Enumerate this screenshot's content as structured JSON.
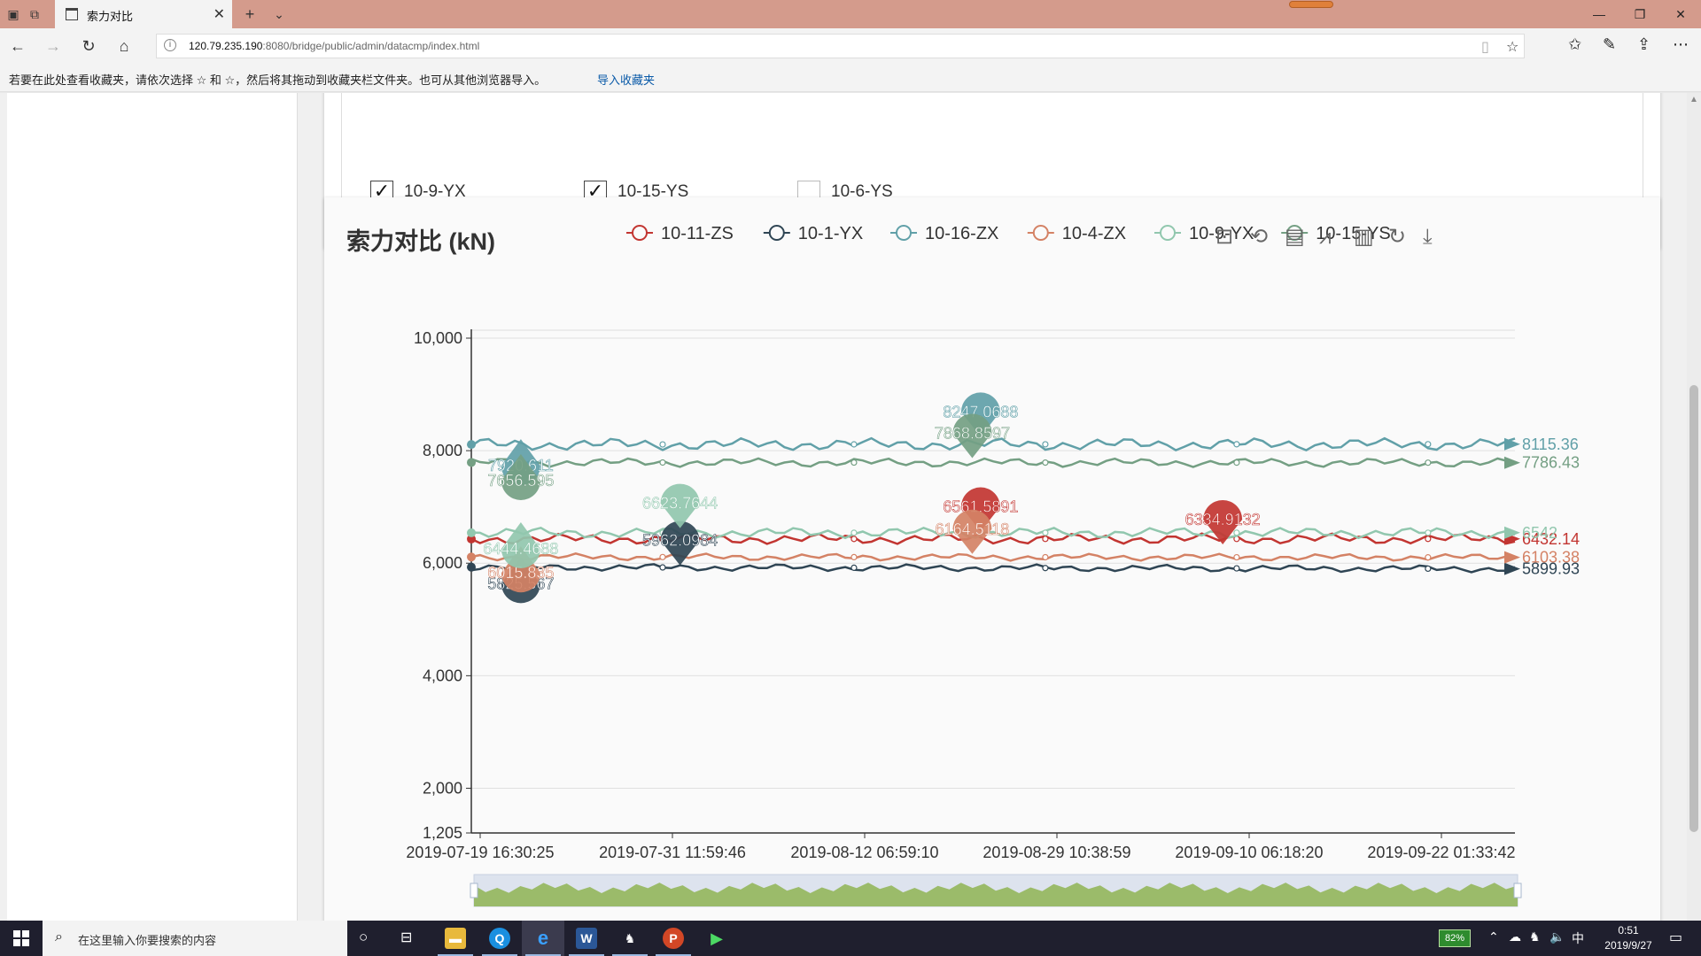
{
  "browser": {
    "tab_title": "索力对比",
    "url_host": "120.79.235.190",
    "url_rest": ":8080/bridge/public/admin/datacmp/index.html",
    "favbar_message": "若要在此处查看收藏夹，请依次选择 ☆ 和 ☆，然后将其拖动到收藏夹栏文件夹。也可从其他浏览器导入。",
    "favbar_link": "导入收藏夹"
  },
  "checkboxes": [
    {
      "label": "10-9-YX",
      "checked": true
    },
    {
      "label": "10-15-YS",
      "checked": true
    },
    {
      "label": "10-6-YS",
      "checked": false
    }
  ],
  "colors": {
    "s_zs": "#c23531",
    "s_yx1": "#2f4554",
    "s_zx16": "#61a0a8",
    "s_zx4": "#d48265",
    "s_yx9": "#91c7ae",
    "s_ys15": "#749f83",
    "zoom_fill": "#9bbb6a"
  },
  "toolbox": [
    "zoom-icon",
    "zoom-reset-icon",
    "data-view-icon",
    "line-chart-icon",
    "bar-chart-icon",
    "restore-icon",
    "download-icon"
  ],
  "chart_data": {
    "type": "line",
    "title": "索力对比 (kN)",
    "ylim": [
      1205,
      10000
    ],
    "yticks": [
      "10,000",
      "8,000",
      "6,000",
      "4,000",
      "2,000",
      "1,205"
    ],
    "ytick_values": [
      10000,
      8000,
      6000,
      4000,
      2000,
      1205
    ],
    "xticks": [
      "2019-07-19 16:30:25",
      "2019-07-31 11:59:46",
      "2019-08-12 06:59:10",
      "2019-08-29 10:38:59",
      "2019-09-10 06:18:20",
      "2019-09-22 01:33:42"
    ],
    "legend_position": "top-center",
    "series": [
      {
        "name": "10-11-ZS",
        "color": "#c23531",
        "start": 6430,
        "end_label": "6432.14",
        "end": 6432.14,
        "max": {
          "label": "6561.5891",
          "value": 6561.5891,
          "xi": 2.44
        },
        "max2": {
          "label": "6334.9132",
          "value": 6334.9132,
          "xi": 3.6
        }
      },
      {
        "name": "10-1-YX",
        "color": "#2f4554",
        "start": 5930,
        "end_label": "5899.93",
        "end": 5899.93,
        "max": {
          "label": "5962.0984",
          "value": 5962.0984,
          "xi": 1.0
        },
        "min": {
          "label": "5825.567",
          "value": 5825.567,
          "xi": 0.25
        }
      },
      {
        "name": "10-16-ZX",
        "color": "#61a0a8",
        "start": 8110,
        "end_label": "8115.36",
        "end": 8115.36,
        "max": {
          "label": "8247.0688",
          "value": 8247.0688,
          "xi": 2.44
        },
        "min": {
          "label": "7920.611",
          "value": 7920.611,
          "xi": 0.25
        }
      },
      {
        "name": "10-4-ZX",
        "color": "#d48265",
        "start": 6110,
        "end_label": "6103.38",
        "end": 6103.38,
        "max": {
          "label": "6164.5118",
          "value": 6164.5118,
          "xi": 2.4
        },
        "min": {
          "label": "6015.835",
          "value": 6015.835,
          "xi": 0.25
        }
      },
      {
        "name": "10-9-YX",
        "color": "#91c7ae",
        "start": 6540,
        "end_label": "6542",
        "end": 6542,
        "max": {
          "label": "6623.7644",
          "value": 6623.7644,
          "xi": 1.0
        },
        "min": {
          "label": "6444.4688",
          "value": 6444.4688,
          "xi": 0.25
        }
      },
      {
        "name": "10-15-YS",
        "color": "#749f83",
        "start": 7790,
        "end_label": "7786.43",
        "end": 7786.43,
        "max": {
          "label": "7868.8597",
          "value": 7868.8597,
          "xi": 2.4
        },
        "min": {
          "label": "7656.595",
          "value": 7656.595,
          "xi": 0.25
        }
      }
    ]
  },
  "taskbar": {
    "search_placeholder": "在这里输入你要搜索的内容",
    "battery": "82%",
    "ime": "中",
    "time": "0:51",
    "date": "2019/9/27"
  }
}
